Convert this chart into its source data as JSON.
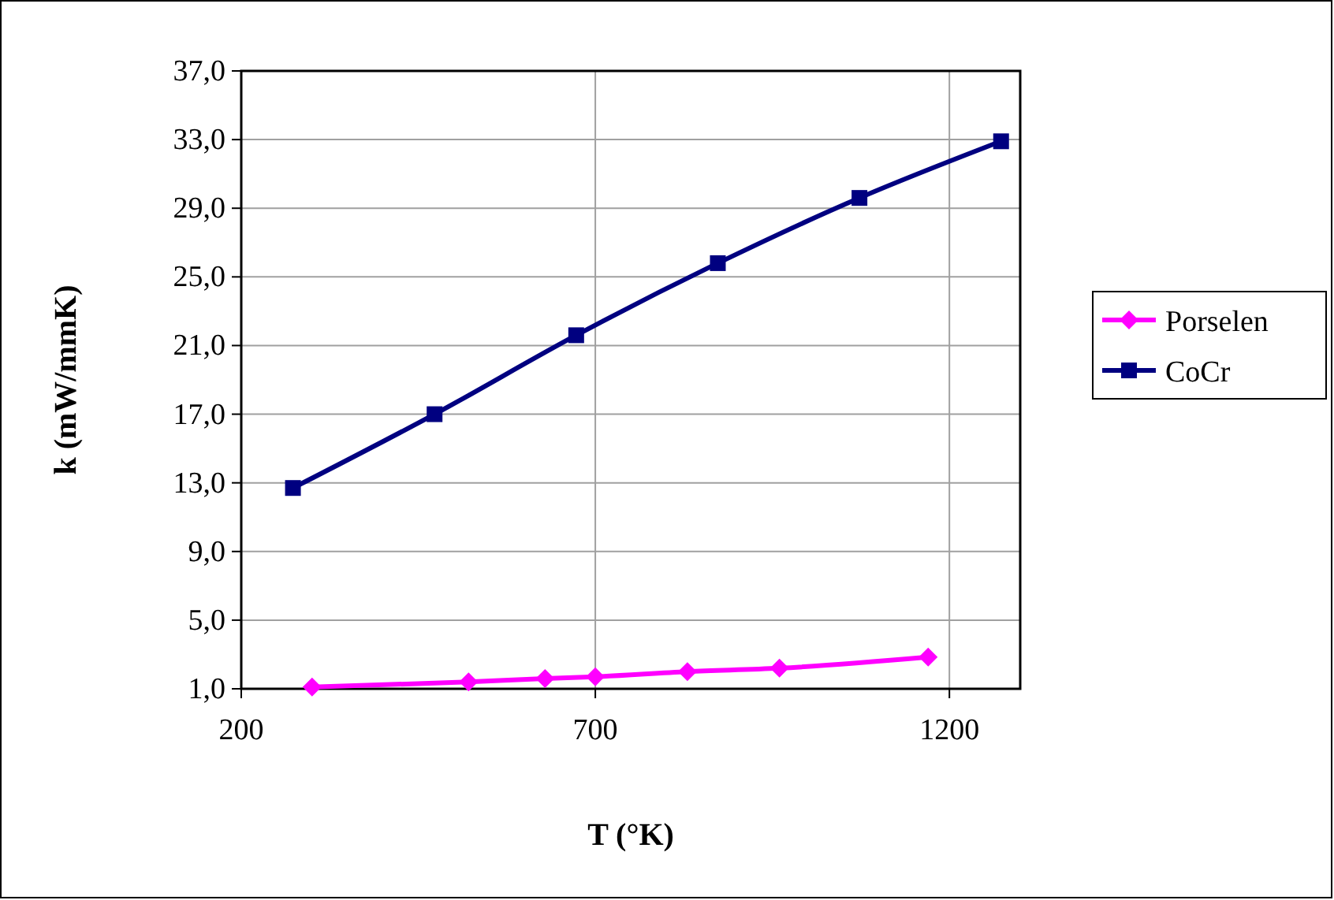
{
  "chart_data": {
    "type": "line",
    "xlabel": "T (°K)",
    "ylabel": "k (mW/mmK)",
    "xlim": [
      200,
      1300
    ],
    "xticks": [
      200,
      700,
      1200
    ],
    "ylim": [
      1,
      37
    ],
    "yticks": [
      {
        "value": 1,
        "label": "1,0"
      },
      {
        "value": 5,
        "label": "5,0"
      },
      {
        "value": 9,
        "label": "9,0"
      },
      {
        "value": 13,
        "label": "13,0"
      },
      {
        "value": 17,
        "label": "17,0"
      },
      {
        "value": 21,
        "label": "21,0"
      },
      {
        "value": 25,
        "label": "25,0"
      },
      {
        "value": 29,
        "label": "29,0"
      },
      {
        "value": 33,
        "label": "33,0"
      },
      {
        "value": 37,
        "label": "37,0"
      }
    ],
    "grid": true,
    "legend": "right",
    "series": [
      {
        "name": "Porselen",
        "color": "#ff00ff",
        "marker": "diamond",
        "x": [
          300,
          521,
          629,
          700,
          830,
          960,
          1170
        ],
        "values": [
          1.1,
          1.4,
          1.6,
          1.7,
          2.0,
          2.2,
          2.85
        ]
      },
      {
        "name": "CoCr",
        "color": "#000080",
        "marker": "square",
        "x": [
          273,
          473,
          673,
          873,
          1073,
          1273
        ],
        "values": [
          12.7,
          17.0,
          21.6,
          25.8,
          29.6,
          32.9
        ]
      }
    ]
  }
}
